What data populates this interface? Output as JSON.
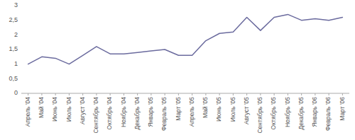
{
  "chart_data": {
    "type": "line",
    "categories": [
      "Апрель '04",
      "Май '04",
      "Июнь '04",
      "Июль '04",
      "Август '04",
      "Сентябрь '04",
      "Октябрь '04",
      "Ноябрь '04",
      "Декабрь '04",
      "Январь '05",
      "Февраль '05",
      "Март '05",
      "Апрель '05",
      "Май '05",
      "Июнь '05",
      "Июль '05",
      "Август '05",
      "Сентябрь '05",
      "Октябрь '05",
      "Ноябрь '05",
      "Декабрь '05",
      "Январь '06",
      "Февраль '06",
      "Март '06"
    ],
    "values": [
      1.0,
      1.25,
      1.2,
      1.0,
      1.3,
      1.6,
      1.35,
      1.35,
      1.4,
      1.45,
      1.5,
      1.3,
      1.3,
      1.8,
      2.05,
      2.1,
      2.6,
      2.15,
      2.6,
      2.7,
      2.5,
      2.55,
      2.5,
      2.6
    ],
    "color": "#6b6b9e",
    "ylim": [
      0,
      3.0
    ],
    "yticks": [
      0,
      {
        "value": 0.5,
        "label": "0,5"
      },
      1,
      {
        "value": 1.5,
        "label": "1,5"
      },
      2,
      {
        "value": 2.5,
        "label": "2,5"
      },
      3
    ],
    "grid": false
  }
}
